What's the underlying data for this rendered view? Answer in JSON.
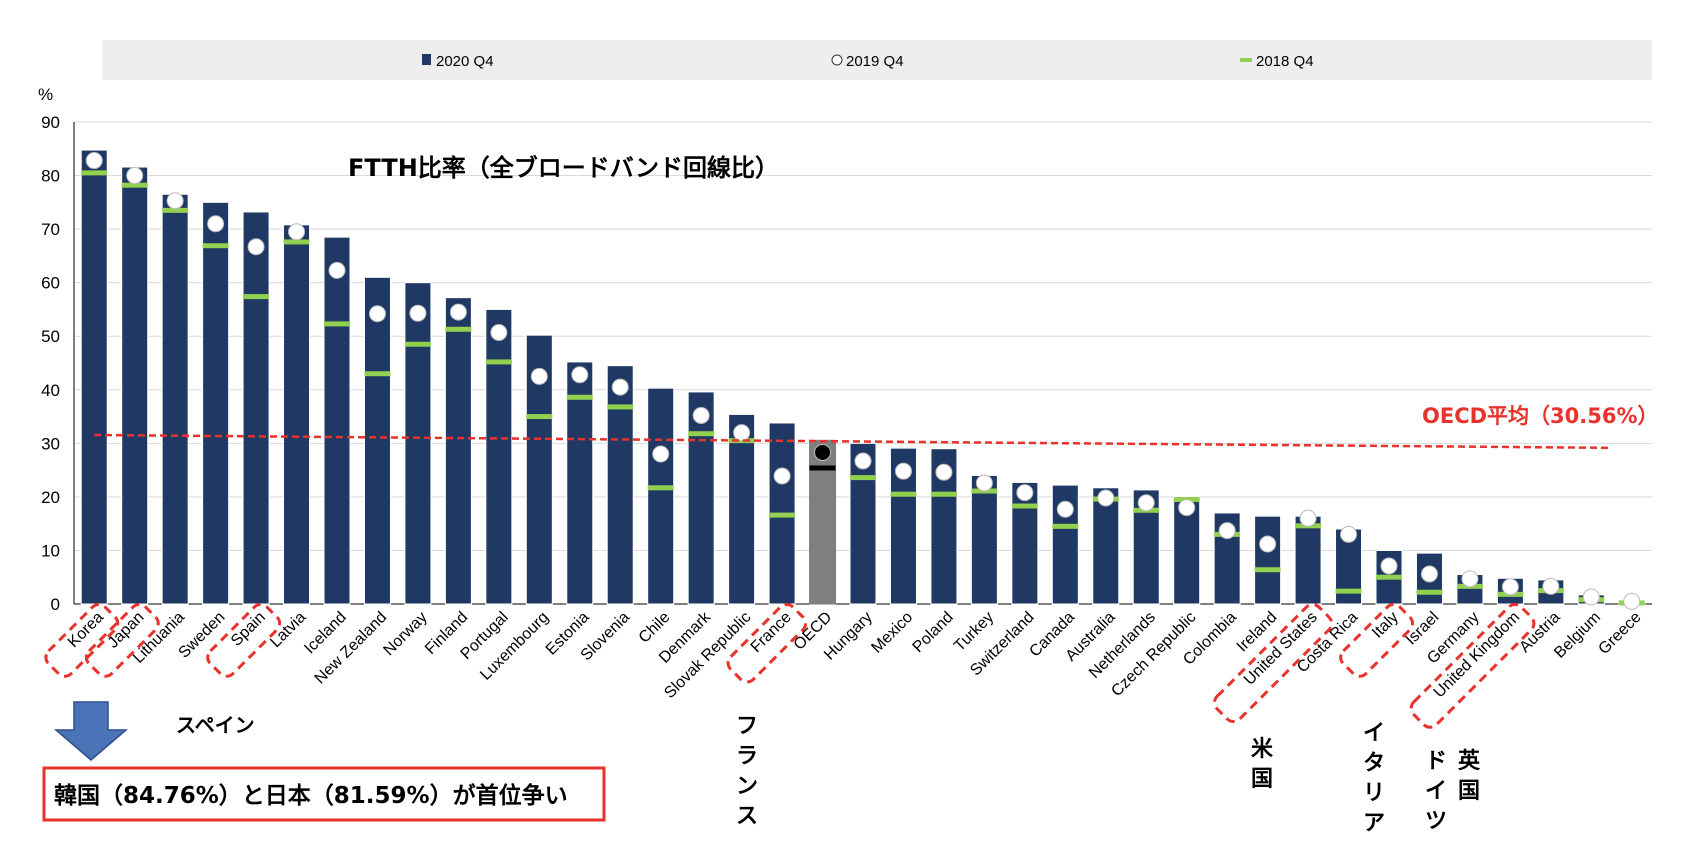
{
  "chart_data": {
    "type": "bar",
    "title": "FTTH比率（全ブロードバンド回線比）",
    "ylabel": "%",
    "ylim": [
      0,
      90
    ],
    "yticks": [
      0,
      10,
      20,
      30,
      40,
      50,
      60,
      70,
      80,
      90
    ],
    "grid": true,
    "legend_position": "top",
    "categories": [
      "Korea",
      "Japan",
      "Lithuania",
      "Sweden",
      "Spain",
      "Latvia",
      "Iceland",
      "New Zealand",
      "Norway",
      "Finland",
      "Portugal",
      "Luxembourg",
      "Estonia",
      "Slovenia",
      "Chile",
      "Denmark",
      "Slovak Republic",
      "France",
      "OECD",
      "Hungary",
      "Mexico",
      "Poland",
      "Turkey",
      "Switzerland",
      "Canada",
      "Australia",
      "Netherlands",
      "Czech Republic",
      "Colombia",
      "Ireland",
      "United States",
      "Costa Rica",
      "Italy",
      "Israel",
      "Germany",
      "United Kingdom",
      "Austria",
      "Belgium",
      "Greece"
    ],
    "series": [
      {
        "name": "2020 Q4",
        "marker": "bar",
        "color": "#1f3864",
        "values": [
          84.76,
          81.59,
          76.5,
          75.0,
          73.2,
          70.8,
          68.5,
          61.0,
          60.0,
          57.2,
          55.0,
          50.2,
          45.2,
          44.5,
          40.3,
          39.6,
          35.4,
          33.8,
          30.56,
          30.0,
          29.1,
          29.0,
          24.0,
          22.7,
          22.2,
          21.7,
          21.3,
          20.0,
          17.0,
          16.4,
          16.4,
          14.0,
          10.0,
          9.5,
          5.5,
          4.8,
          4.5,
          1.7,
          0.6
        ]
      },
      {
        "name": "2019 Q4",
        "marker": "circle",
        "color": "#ffffff",
        "values": [
          82.8,
          80.0,
          75.3,
          71.0,
          66.7,
          69.5,
          62.3,
          54.2,
          54.3,
          54.5,
          50.7,
          42.5,
          42.8,
          40.5,
          28.0,
          35.2,
          32.0,
          23.9,
          28.3,
          26.7,
          24.8,
          24.6,
          22.6,
          20.8,
          17.7,
          19.8,
          18.9,
          18.0,
          13.7,
          11.2,
          16.0,
          13.0,
          7.1,
          5.6,
          4.7,
          3.2,
          3.3,
          1.3,
          0.5
        ]
      },
      {
        "name": "2018 Q4",
        "marker": "dash",
        "color": "#92d050",
        "values": [
          80.5,
          78.2,
          73.5,
          66.9,
          57.4,
          67.6,
          52.3,
          43.0,
          48.5,
          51.3,
          45.2,
          35.0,
          38.6,
          36.8,
          21.7,
          31.8,
          30.5,
          16.6,
          25.4,
          23.6,
          20.5,
          20.5,
          21.1,
          18.3,
          14.5,
          19.6,
          17.5,
          19.5,
          13.0,
          6.4,
          14.6,
          2.4,
          5.0,
          2.2,
          3.3,
          1.8,
          2.5,
          0.8,
          0.2
        ]
      }
    ],
    "highlight_category": "OECD",
    "highlight_bar_color": "#7f7f7f",
    "reference_line": {
      "label": "OECD平均（30.56%）",
      "value": 30.56,
      "color": "#e8322b"
    },
    "highlighted_boxes": [
      [
        "Korea"
      ],
      [
        "Japan"
      ],
      [
        "Spain"
      ],
      [
        "France"
      ],
      [
        "United States"
      ],
      [
        "Italy"
      ],
      [
        "United Kingdom"
      ]
    ],
    "annotations": {
      "spain": "スペイン",
      "france": "フランス",
      "usa": "米国",
      "italy": "イタリア",
      "germany": "ドイツ",
      "uk": "英国",
      "callout": "韓国（84.76%）と日本（81.59%）が首位争い"
    }
  }
}
